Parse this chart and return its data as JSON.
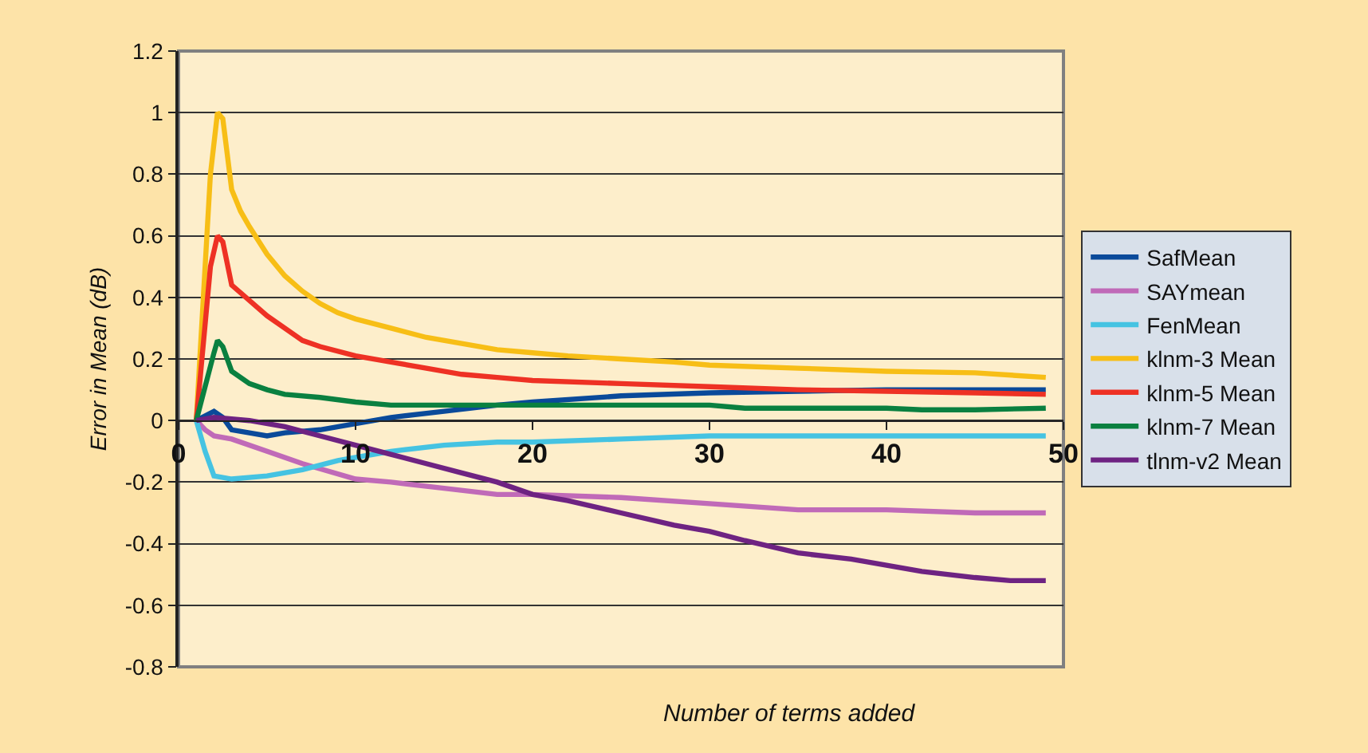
{
  "chart_data": {
    "type": "line",
    "xlabel": "Number of terms added",
    "ylabel": "Error in Mean (dB)",
    "xlim": [
      0,
      50
    ],
    "xticks": [
      0,
      10,
      20,
      30,
      40,
      50
    ],
    "ylim": [
      -0.8,
      1.2
    ],
    "yticks": [
      -0.8,
      -0.6,
      -0.4,
      -0.2,
      0,
      0.2,
      0.4,
      0.6,
      0.8,
      1,
      1.2
    ],
    "grid": "y",
    "legend": "right",
    "marker": "none",
    "line_style": "solid",
    "series": [
      {
        "name": "SafMean",
        "color": "#0a4a9a",
        "x": [
          1,
          2,
          2.5,
          3,
          4,
          5,
          6,
          8,
          10,
          12,
          15,
          18,
          20,
          25,
          30,
          35,
          40,
          45,
          49
        ],
        "values": [
          0,
          0.03,
          0.01,
          -0.03,
          -0.04,
          -0.05,
          -0.04,
          -0.03,
          -0.01,
          0.01,
          0.03,
          0.05,
          0.06,
          0.08,
          0.09,
          0.095,
          0.1,
          0.1,
          0.1
        ]
      },
      {
        "name": "SAYmean",
        "color": "#c06ab8",
        "x": [
          1,
          1.5,
          2,
          3,
          5,
          7,
          10,
          12,
          15,
          18,
          20,
          25,
          30,
          35,
          40,
          45,
          49
        ],
        "values": [
          0,
          -0.03,
          -0.05,
          -0.06,
          -0.1,
          -0.14,
          -0.19,
          -0.2,
          -0.22,
          -0.24,
          -0.24,
          -0.25,
          -0.27,
          -0.29,
          -0.29,
          -0.3,
          -0.3
        ]
      },
      {
        "name": "FenMean",
        "color": "#45c3e2",
        "x": [
          1,
          1.5,
          2,
          3,
          5,
          7,
          9,
          10,
          12,
          15,
          18,
          20,
          25,
          30,
          35,
          40,
          49
        ],
        "values": [
          0,
          -0.1,
          -0.18,
          -0.19,
          -0.18,
          -0.16,
          -0.13,
          -0.12,
          -0.1,
          -0.08,
          -0.07,
          -0.07,
          -0.06,
          -0.05,
          -0.05,
          -0.05,
          -0.05
        ]
      },
      {
        "name": "klnm-3 Mean",
        "color": "#f7be16",
        "x": [
          1,
          1.8,
          2.2,
          2.5,
          3,
          3.5,
          4,
          5,
          6,
          7,
          8,
          9,
          10,
          12,
          14,
          16,
          18,
          20,
          22,
          25,
          28,
          30,
          35,
          40,
          45,
          49
        ],
        "values": [
          0,
          0.8,
          1.0,
          0.98,
          0.75,
          0.68,
          0.63,
          0.54,
          0.47,
          0.42,
          0.38,
          0.35,
          0.33,
          0.3,
          0.27,
          0.25,
          0.23,
          0.22,
          0.21,
          0.2,
          0.19,
          0.18,
          0.17,
          0.16,
          0.155,
          0.14
        ]
      },
      {
        "name": "klnm-5 Mean",
        "color": "#ee3124",
        "x": [
          1,
          1.8,
          2.2,
          2.5,
          3,
          4,
          5,
          6,
          7,
          8,
          10,
          12,
          14,
          16,
          18,
          20,
          25,
          30,
          35,
          40,
          45,
          49
        ],
        "values": [
          0,
          0.5,
          0.6,
          0.58,
          0.44,
          0.39,
          0.34,
          0.3,
          0.26,
          0.24,
          0.21,
          0.19,
          0.17,
          0.15,
          0.14,
          0.13,
          0.12,
          0.11,
          0.1,
          0.095,
          0.09,
          0.085
        ]
      },
      {
        "name": "klnm-7 Mean",
        "color": "#0a8040",
        "x": [
          1,
          2,
          2.2,
          2.5,
          3,
          4,
          5,
          6,
          8,
          10,
          12,
          15,
          20,
          25,
          30,
          32,
          40,
          42,
          45,
          49
        ],
        "values": [
          0,
          0.22,
          0.26,
          0.24,
          0.16,
          0.12,
          0.1,
          0.085,
          0.075,
          0.06,
          0.05,
          0.05,
          0.05,
          0.05,
          0.05,
          0.04,
          0.04,
          0.035,
          0.035,
          0.04
        ]
      },
      {
        "name": "tlnm-v2 Mean",
        "color": "#6e2382",
        "x": [
          1,
          2,
          4,
          6,
          8,
          10,
          12,
          14,
          16,
          18,
          20,
          22,
          25,
          28,
          30,
          32,
          35,
          38,
          40,
          42,
          45,
          47,
          49
        ],
        "values": [
          0,
          0.01,
          0,
          -0.02,
          -0.05,
          -0.08,
          -0.11,
          -0.14,
          -0.17,
          -0.2,
          -0.24,
          -0.26,
          -0.3,
          -0.34,
          -0.36,
          -0.39,
          -0.43,
          -0.45,
          -0.47,
          -0.49,
          -0.51,
          -0.52,
          -0.52
        ]
      }
    ]
  }
}
